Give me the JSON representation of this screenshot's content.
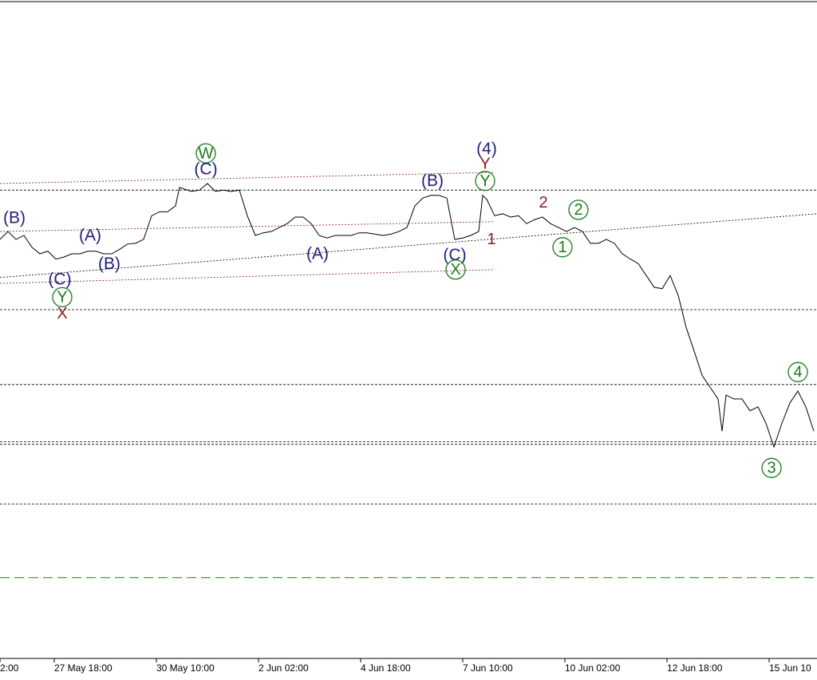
{
  "chart_data": {
    "type": "line",
    "color": "#000000",
    "xlim": [
      0,
      512
    ],
    "ylim": [
      0,
      100
    ],
    "xticks": [
      {
        "value": 0,
        "label": "2:00"
      },
      {
        "value": 34,
        "label": "27 May 18:00"
      },
      {
        "value": 98,
        "label": "30 May 10:00"
      },
      {
        "value": 162,
        "label": "2 Jun 02:00"
      },
      {
        "value": 226,
        "label": "4 Jun 18:00"
      },
      {
        "value": 290,
        "label": "7 Jun 10:00"
      },
      {
        "value": 354,
        "label": "10 Jun 02:00"
      },
      {
        "value": 418,
        "label": "12 Jun 18:00"
      },
      {
        "value": 482,
        "label": "15 Jun 10"
      }
    ],
    "x": [
      0,
      5,
      10,
      15,
      20,
      25,
      30,
      35,
      40,
      45,
      50,
      55,
      60,
      65,
      70,
      75,
      80,
      85,
      90,
      95,
      100,
      105,
      110,
      112.5,
      120,
      125,
      130,
      135,
      140,
      145,
      150,
      155,
      160,
      165,
      170,
      175,
      180,
      185,
      190,
      195,
      200,
      205,
      210,
      215,
      220,
      225,
      230,
      235,
      240,
      245,
      250,
      255,
      260,
      265,
      270,
      275,
      280,
      285,
      290,
      295,
      300,
      302.5,
      305,
      310,
      315,
      320,
      325,
      330,
      335,
      340,
      345,
      350,
      355,
      360,
      365,
      370,
      375,
      380,
      385,
      390,
      395,
      400,
      405,
      410,
      415,
      420,
      425,
      430,
      435,
      440,
      445,
      450,
      452.5,
      455,
      460,
      465,
      470,
      475,
      480,
      485,
      490,
      495,
      500,
      505,
      510
    ],
    "values": [
      63.8,
      65.0,
      63.8,
      64.4,
      62.6,
      61.6,
      62.0,
      60.8,
      61.1,
      61.6,
      61.6,
      62.0,
      62.0,
      61.6,
      61.6,
      62.3,
      63.1,
      63.2,
      63.8,
      67.4,
      68.0,
      68.0,
      68.9,
      71.7,
      71.1,
      71.3,
      72.3,
      71.1,
      71.3,
      71.1,
      71.3,
      67.4,
      64.4,
      64.8,
      65.0,
      65.6,
      66.2,
      67.2,
      67.2,
      66.2,
      64.4,
      64.0,
      64.4,
      64.4,
      64.4,
      64.8,
      64.8,
      64.6,
      64.4,
      64.6,
      65.0,
      65.6,
      68.9,
      70.1,
      70.5,
      70.5,
      70.1,
      63.8,
      64.0,
      64.4,
      65.0,
      70.5,
      69.9,
      67.4,
      67.7,
      67.2,
      67.4,
      66.2,
      66.8,
      67.2,
      66.2,
      65.6,
      65.0,
      65.6,
      65.0,
      63.2,
      63.2,
      63.8,
      63.2,
      61.6,
      60.8,
      60.1,
      58.3,
      56.5,
      56.3,
      58.3,
      55.3,
      50.4,
      46.8,
      43.1,
      41.3,
      39.5,
      34.6,
      40.1,
      39.5,
      39.5,
      37.7,
      38.3,
      35.8,
      32.2,
      35.8,
      38.9,
      40.7,
      38.3,
      34.6
    ],
    "levels": [
      71.3,
      53.1,
      41.7,
      33.0,
      32.6,
      23.5
    ],
    "target_level": 12.3,
    "trendlines": [
      {
        "x": [
          0,
          512
        ],
        "y": [
          58.0,
          67.7
        ],
        "color": "#000000"
      },
      {
        "x": [
          0,
          310
        ],
        "y": [
          72.3,
          74.0
        ],
        "color": "#8b1a1a"
      },
      {
        "x": [
          0,
          310
        ],
        "y": [
          65.0,
          66.5
        ],
        "color": "#8b1a1a"
      },
      {
        "x": [
          0,
          310
        ],
        "y": [
          57.1,
          59.2
        ],
        "color": "#8b1a1a"
      }
    ],
    "annotations": [
      {
        "text": "(B)",
        "x": 9,
        "y": 67.1,
        "color": "#1f1f7a",
        "circled": false
      },
      {
        "text": "(A)",
        "x": 56.5,
        "y": 64.4,
        "color": "#1f1f7a",
        "circled": false
      },
      {
        "text": "(B)",
        "x": 68.5,
        "y": 60.1,
        "color": "#1f1f7a",
        "circled": false
      },
      {
        "text": "(C)",
        "x": 37.5,
        "y": 57.7,
        "color": "#1f1f7a",
        "circled": false
      },
      {
        "text": "Y",
        "x": 39,
        "y": 55.0,
        "color": "#1a7a1a",
        "circled": true
      },
      {
        "text": "X",
        "x": 39,
        "y": 52.5,
        "color": "#8b1a1a",
        "circled": false
      },
      {
        "text": "W",
        "x": 129,
        "y": 76.9,
        "color": "#1a7a1a",
        "circled": true
      },
      {
        "text": "(C)",
        "x": 129,
        "y": 74.5,
        "color": "#1f1f7a",
        "circled": false
      },
      {
        "text": "(A)",
        "x": 199,
        "y": 61.6,
        "color": "#1f1f7a",
        "circled": false
      },
      {
        "text": "(B)",
        "x": 271,
        "y": 72.7,
        "color": "#1f1f7a",
        "circled": false
      },
      {
        "text": "(C)",
        "x": 285,
        "y": 61.4,
        "color": "#1f1f7a",
        "circled": false
      },
      {
        "text": "X",
        "x": 285.5,
        "y": 59.2,
        "color": "#1a7a1a",
        "circled": true
      },
      {
        "text": "(4)",
        "x": 305,
        "y": 77.6,
        "color": "#1f1f7a",
        "circled": false
      },
      {
        "text": "Y",
        "x": 304,
        "y": 75.3,
        "color": "#8b1a1a",
        "circled": false
      },
      {
        "text": "Y",
        "x": 304,
        "y": 72.7,
        "color": "#1a7a1a",
        "circled": true
      },
      {
        "text": "1",
        "x": 308,
        "y": 63.8,
        "color": "#8b1a1a",
        "circled": false
      },
      {
        "text": "2",
        "x": 340.5,
        "y": 69.4,
        "color": "#8b1a1a",
        "circled": false
      },
      {
        "text": "2",
        "x": 362.5,
        "y": 68.3,
        "color": "#1a7a1a",
        "circled": true
      },
      {
        "text": "1",
        "x": 352.5,
        "y": 62.6,
        "color": "#1a7a1a",
        "circled": true
      },
      {
        "text": "4",
        "x": 500,
        "y": 43.6,
        "color": "#1a7a1a",
        "circled": true
      },
      {
        "text": "3",
        "x": 483.5,
        "y": 29.0,
        "color": "#1a7a1a",
        "circled": true
      }
    ]
  }
}
